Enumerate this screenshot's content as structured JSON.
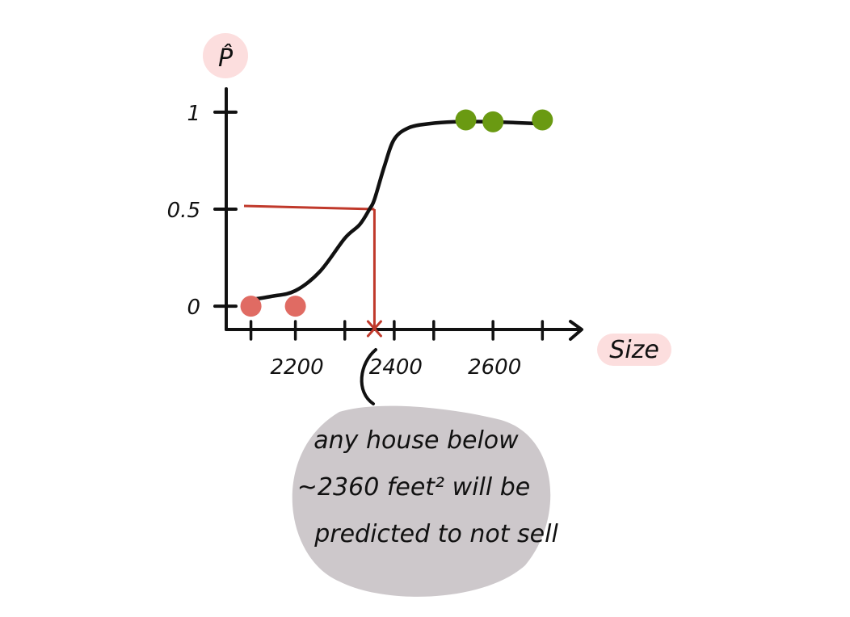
{
  "chart_data": {
    "type": "line",
    "title": "",
    "xlabel": "Size",
    "ylabel": "P̂",
    "xlim": [
      2060,
      2760
    ],
    "ylim": [
      -0.12,
      1.12
    ],
    "x_ticks": [
      2200,
      2400,
      2600
    ],
    "y_ticks": [
      {
        "value": 0,
        "label": "0"
      },
      {
        "value": 0.5,
        "label": "0.5"
      },
      {
        "value": 1,
        "label": "1"
      }
    ],
    "grid": false,
    "series": [
      {
        "kind": "sigmoid-curve",
        "x": [
          2100,
          2150,
          2200,
          2250,
          2300,
          2330,
          2350,
          2360,
          2380,
          2400,
          2430,
          2470,
          2520,
          2600,
          2700
        ],
        "y": [
          0.03,
          0.05,
          0.08,
          0.18,
          0.35,
          0.42,
          0.5,
          0.55,
          0.72,
          0.86,
          0.92,
          0.94,
          0.95,
          0.95,
          0.94
        ]
      },
      {
        "kind": "points-not-sold",
        "color": "#e06b63",
        "x": [
          2110,
          2200
        ],
        "y": [
          0,
          0
        ]
      },
      {
        "kind": "points-sold",
        "color": "#6a9a12",
        "x": [
          2545,
          2600,
          2700
        ],
        "y": [
          0.96,
          0.95,
          0.96
        ]
      }
    ],
    "threshold": {
      "x": 2360,
      "y": 0.5,
      "color": "#c0392b"
    },
    "annotation": {
      "lines": [
        "any house below",
        "~2360 feet² will be",
        "predicted to not sell"
      ],
      "bubble_color": "#cdc8cb"
    }
  },
  "colors": {
    "label_bg": "#fcdede",
    "ink": "#111111"
  }
}
